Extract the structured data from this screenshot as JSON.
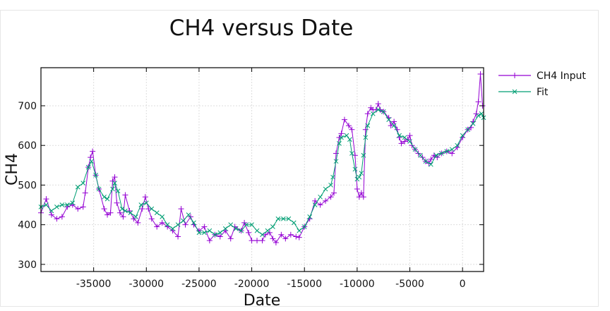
{
  "chart_data": {
    "type": "line",
    "title": "CH4 versus Date",
    "xlabel": "Date",
    "ylabel": "CH4",
    "xlim": [
      -40000,
      2000
    ],
    "ylim": [
      282,
      796
    ],
    "xticks": [
      -35000,
      -30000,
      -25000,
      -20000,
      -15000,
      -10000,
      -5000,
      0
    ],
    "yticks": [
      300,
      400,
      500,
      600,
      700
    ],
    "grid": true,
    "legend_position": "outside-right",
    "colors": {
      "input": "#9400d3",
      "fit": "#009e73"
    },
    "series": [
      {
        "name": "CH4 Input",
        "marker": "plus",
        "x": [
          -40000,
          -39500,
          -39000,
          -38500,
          -38000,
          -37500,
          -37000,
          -36500,
          -36000,
          -35800,
          -35500,
          -35300,
          -35100,
          -34800,
          -34500,
          -34000,
          -33700,
          -33400,
          -33200,
          -33000,
          -32800,
          -32500,
          -32200,
          -32000,
          -31600,
          -31200,
          -30800,
          -30400,
          -30100,
          -29800,
          -29500,
          -29000,
          -28500,
          -28000,
          -27500,
          -27000,
          -26700,
          -26300,
          -25800,
          -25500,
          -25000,
          -24500,
          -24000,
          -23500,
          -23000,
          -22500,
          -22000,
          -21600,
          -21000,
          -20700,
          -20300,
          -20000,
          -19500,
          -19000,
          -18700,
          -18300,
          -18000,
          -17700,
          -17200,
          -16800,
          -16300,
          -15800,
          -15500,
          -15000,
          -14500,
          -14000,
          -13500,
          -13000,
          -12500,
          -12200,
          -12000,
          -11700,
          -11500,
          -11200,
          -10800,
          -10500,
          -10200,
          -10000,
          -9800,
          -9600,
          -9400,
          -9200,
          -9000,
          -8700,
          -8500,
          -8200,
          -8000,
          -7800,
          -7500,
          -7000,
          -6800,
          -6500,
          -6200,
          -6000,
          -5800,
          -5500,
          -5200,
          -5000,
          -4800,
          -4500,
          -4200,
          -3800,
          -3500,
          -3200,
          -3000,
          -2700,
          -2400,
          -2000,
          -1500,
          -1000,
          -500,
          0,
          500,
          800,
          1000,
          1300,
          1500,
          1700,
          1900
        ],
        "y": [
          430,
          465,
          425,
          415,
          420,
          445,
          450,
          440,
          445,
          480,
          545,
          570,
          585,
          525,
          490,
          440,
          425,
          430,
          510,
          520,
          455,
          430,
          420,
          475,
          435,
          415,
          405,
          440,
          470,
          440,
          415,
          395,
          405,
          395,
          385,
          370,
          440,
          400,
          420,
          400,
          385,
          395,
          360,
          375,
          370,
          385,
          365,
          395,
          385,
          405,
          380,
          360,
          360,
          360,
          375,
          380,
          365,
          355,
          375,
          365,
          375,
          370,
          368,
          395,
          415,
          460,
          450,
          460,
          470,
          480,
          580,
          620,
          630,
          665,
          650,
          640,
          575,
          490,
          470,
          480,
          470,
          640,
          680,
          695,
          690,
          690,
          705,
          690,
          685,
          670,
          650,
          660,
          640,
          620,
          605,
          610,
          615,
          625,
          600,
          590,
          580,
          570,
          560,
          555,
          565,
          575,
          570,
          580,
          585,
          580,
          595,
          620,
          640,
          645,
          660,
          680,
          710,
          780,
          700
        ]
      },
      {
        "name": "Fit",
        "marker": "cross",
        "x": [
          -40000,
          -39500,
          -39000,
          -38500,
          -38000,
          -37500,
          -37000,
          -36500,
          -36000,
          -35500,
          -35200,
          -34800,
          -34500,
          -34000,
          -33700,
          -33200,
          -33000,
          -32700,
          -32300,
          -32000,
          -31500,
          -31000,
          -30500,
          -30000,
          -29500,
          -29000,
          -28500,
          -28000,
          -27500,
          -27000,
          -26500,
          -26000,
          -25500,
          -25000,
          -24500,
          -24000,
          -23500,
          -23000,
          -22500,
          -22000,
          -21500,
          -21000,
          -20500,
          -20000,
          -19500,
          -19000,
          -18500,
          -18000,
          -17500,
          -17000,
          -16500,
          -16000,
          -15500,
          -15000,
          -14500,
          -14000,
          -13500,
          -13000,
          -12500,
          -12300,
          -12000,
          -11700,
          -11500,
          -11000,
          -10700,
          -10500,
          -10200,
          -10000,
          -9800,
          -9600,
          -9400,
          -9200,
          -9000,
          -8500,
          -8000,
          -7500,
          -7000,
          -6500,
          -6000,
          -5500,
          -5000,
          -4500,
          -4000,
          -3500,
          -3000,
          -2500,
          -2000,
          -1500,
          -1000,
          -500,
          0,
          500,
          1000,
          1500,
          1800,
          2000
        ],
        "y": [
          445,
          450,
          435,
          445,
          450,
          450,
          455,
          495,
          505,
          545,
          560,
          525,
          490,
          470,
          465,
          490,
          505,
          485,
          440,
          435,
          430,
          420,
          450,
          455,
          440,
          430,
          420,
          400,
          390,
          400,
          410,
          425,
          405,
          380,
          380,
          385,
          375,
          380,
          390,
          400,
          390,
          385,
          400,
          400,
          385,
          375,
          385,
          395,
          415,
          415,
          415,
          405,
          385,
          395,
          420,
          450,
          470,
          490,
          500,
          520,
          560,
          605,
          620,
          625,
          615,
          580,
          540,
          515,
          520,
          530,
          575,
          620,
          650,
          680,
          690,
          685,
          665,
          650,
          625,
          620,
          610,
          590,
          575,
          560,
          552,
          575,
          580,
          585,
          590,
          600,
          625,
          640,
          655,
          675,
          680,
          670
        ]
      }
    ]
  }
}
